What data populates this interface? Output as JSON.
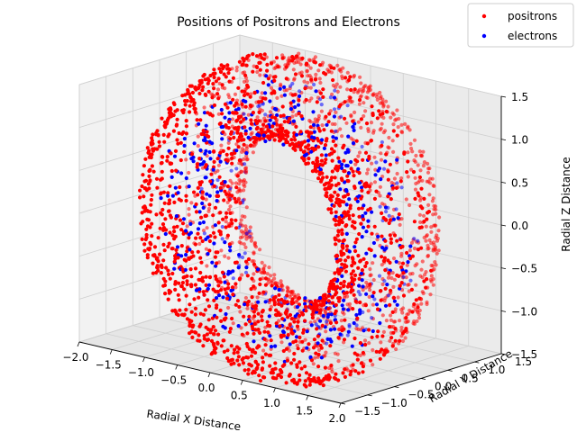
{
  "chart_data": {
    "type": "scatter",
    "title": "Positions of Positrons and Electrons",
    "xlabel": "Radial X Distance",
    "ylabel": "Radial Y Distance",
    "zlabel": "Radial Z Distance",
    "xlim": [
      -2.0,
      2.0
    ],
    "ylim": [
      -1.5,
      1.5
    ],
    "zlim": [
      -1.5,
      1.5
    ],
    "x_ticks": [
      "−2.0",
      "−1.5",
      "−1.0",
      "−0.5",
      "0.0",
      "0.5",
      "1.0",
      "1.5",
      "2.0"
    ],
    "y_ticks": [
      "−1.5",
      "−1.0",
      "−0.5",
      "0.0",
      "0.5",
      "1.0",
      "1.5"
    ],
    "z_ticks": [
      "−1.5",
      "−1.0",
      "−0.5",
      "0.0",
      "0.5",
      "1.0",
      "1.5"
    ],
    "grid": true,
    "legend_position": "top-right",
    "series": [
      {
        "name": "positrons",
        "color": "#ff0000",
        "distribution": "torus",
        "torus_major_radius": 1.5,
        "torus_minor_radius": 0.5
      },
      {
        "name": "electrons",
        "color": "#0000ff",
        "distribution": "inner torus region",
        "torus_major_radius": 1.5,
        "torus_minor_radius": 0.5
      }
    ]
  }
}
